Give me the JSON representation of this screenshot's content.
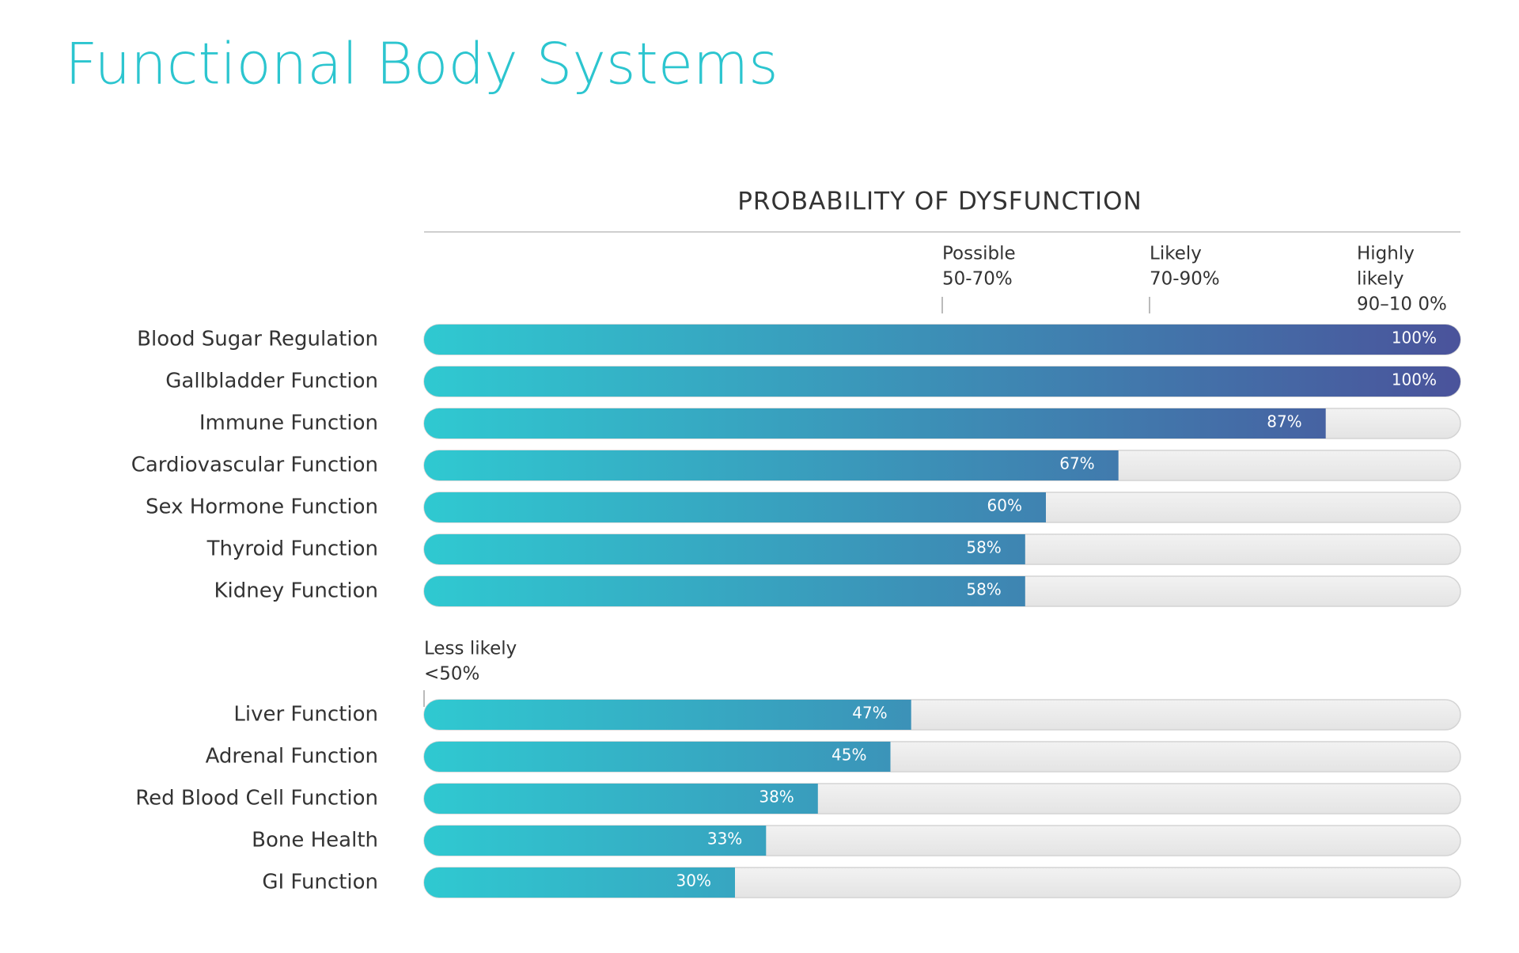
{
  "chart_data": {
    "type": "bar",
    "orientation": "horizontal",
    "title": "Functional Body Systems",
    "subtitle": "PROBABILITY OF DYSFUNCTION",
    "categories": [
      "Blood Sugar Regulation",
      "Gallbladder Function",
      "Immune Function",
      "Cardiovascular Function",
      "Sex Hormone Function",
      "Thyroid Function",
      "Kidney Function",
      "Liver Function",
      "Adrenal Function",
      "Red Blood Cell Function",
      "Bone Health",
      "GI Function"
    ],
    "values": [
      100,
      100,
      87,
      67,
      60,
      58,
      58,
      47,
      45,
      38,
      33,
      30
    ],
    "value_labels": [
      "100%",
      "100%",
      "87%",
      "67%",
      "60%",
      "58%",
      "58%",
      "47%",
      "45%",
      "38%",
      "33%",
      "30%"
    ],
    "xlim": [
      0,
      100
    ],
    "gradient": [
      "#2fc9d1",
      "#4a539b"
    ],
    "track_color": "#e4e4e4",
    "title_color": "#2cc5cf",
    "thresholds": [
      {
        "value": 0,
        "label": [
          "Less likely",
          "<50%"
        ],
        "tick": true
      },
      {
        "value": 50,
        "label": [
          "Possible",
          "50-70%"
        ],
        "tick": true
      },
      {
        "value": 70,
        "label": [
          "Likely",
          "70-90%"
        ],
        "tick": true
      },
      {
        "value": 90,
        "label": [
          "Highly",
          "likely",
          "90–10 0%"
        ],
        "tick": false
      }
    ]
  }
}
